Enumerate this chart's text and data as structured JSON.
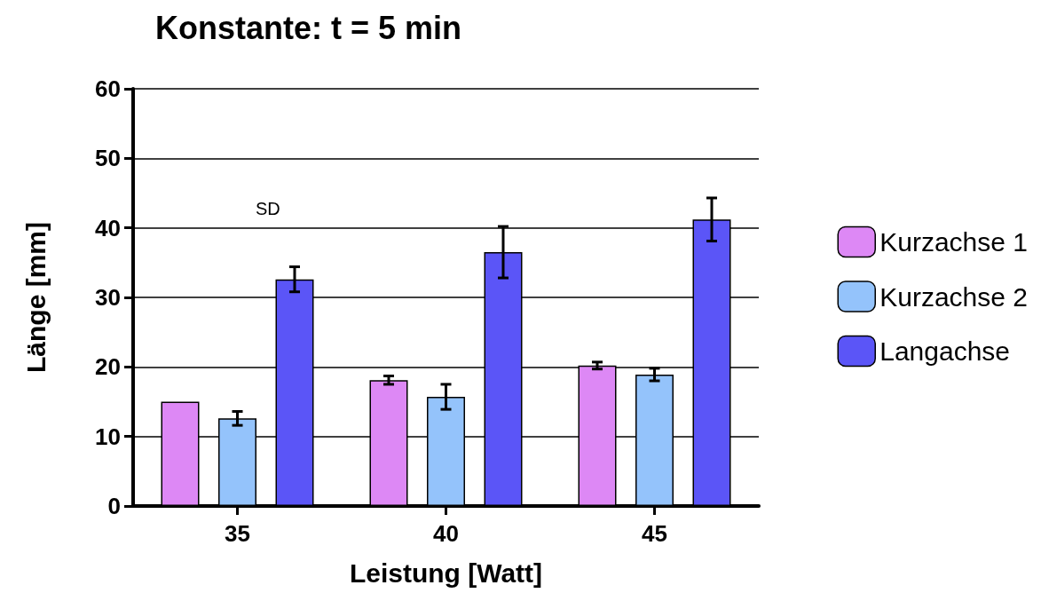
{
  "chart_data": {
    "type": "bar",
    "title": "Konstante: t = 5 min",
    "xlabel": "Leistung [Watt]",
    "ylabel": "Länge [mm]",
    "categories": [
      "35",
      "40",
      "45"
    ],
    "series": [
      {
        "name": "Kurzachse 1",
        "color": "#dd88f5",
        "values": [
          15,
          18.1,
          20.2
        ],
        "errors": [
          null,
          0.6,
          0.5
        ]
      },
      {
        "name": "Kurzachse 2",
        "color": "#94c3fb",
        "values": [
          12.6,
          15.7,
          18.9
        ],
        "errors": [
          1.0,
          1.8,
          0.9
        ]
      },
      {
        "name": "Langachse",
        "color": "#5b55f7",
        "values": [
          32.6,
          36.5,
          41.2
        ],
        "errors": [
          1.8,
          3.7,
          3.1
        ]
      }
    ],
    "ylim": [
      0,
      60
    ],
    "yticks": [
      0,
      10,
      20,
      30,
      40,
      50,
      60
    ],
    "grid": "y",
    "legend": "right",
    "annotations": [
      "SD"
    ]
  }
}
